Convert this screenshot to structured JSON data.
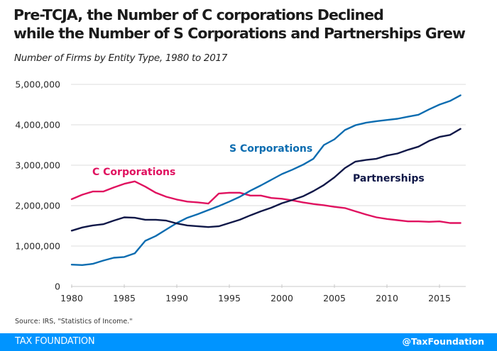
{
  "header": {
    "title_line1": "Pre-TCJA, the Number of C corporations Declined",
    "title_line2": "while the Number of S Corporations and Partnerships Grew",
    "subtitle": "Number of Firms by Entity Type, 1980 to 2017"
  },
  "source": "Source: IRS, \"Statistics of Income.\"",
  "footer": {
    "brand": "TAX FOUNDATION",
    "handle": "@TaxFoundation"
  },
  "chart_data": {
    "type": "line",
    "title": "Pre-TCJA, the Number of C corporations Declined while the Number of S Corporations and Partnerships Grew",
    "subtitle": "Number of Firms by Entity Type, 1980 to 2017",
    "xlabel": "",
    "ylabel": "",
    "xlim": [
      1980,
      2017
    ],
    "ylim": [
      0,
      5000000
    ],
    "grid": "horizontal",
    "x_ticks": [
      1980,
      1985,
      1990,
      1995,
      2000,
      2005,
      2010,
      2015
    ],
    "x_tick_labels": [
      "1980",
      "1985",
      "1990",
      "1995",
      "2000",
      "2005",
      "2010",
      "2015"
    ],
    "y_ticks": [
      0,
      1000000,
      2000000,
      3000000,
      4000000,
      5000000
    ],
    "y_tick_labels": [
      "0",
      "1,000,000",
      "2,000,000",
      "3,000,000",
      "4,000,000",
      "5,000,000"
    ],
    "x": [
      1980,
      1981,
      1982,
      1983,
      1984,
      1985,
      1986,
      1987,
      1988,
      1989,
      1990,
      1991,
      1992,
      1993,
      1994,
      1995,
      1996,
      1997,
      1998,
      1999,
      2000,
      2001,
      2002,
      2003,
      2004,
      2005,
      2006,
      2007,
      2008,
      2009,
      2010,
      2011,
      2012,
      2013,
      2014,
      2015,
      2016,
      2017
    ],
    "series": [
      {
        "name": "C Corporations",
        "color": "#e0115f",
        "label_position": "above-left",
        "values": [
          2160000,
          2270000,
          2350000,
          2350000,
          2450000,
          2540000,
          2600000,
          2470000,
          2320000,
          2220000,
          2150000,
          2100000,
          2080000,
          2050000,
          2300000,
          2320000,
          2320000,
          2250000,
          2250000,
          2190000,
          2170000,
          2130000,
          2080000,
          2040000,
          2010000,
          1970000,
          1940000,
          1860000,
          1780000,
          1710000,
          1670000,
          1640000,
          1610000,
          1610000,
          1600000,
          1610000,
          1570000,
          1570000
        ]
      },
      {
        "name": "S Corporations",
        "color": "#0b6cb0",
        "label_position": "middle",
        "values": [
          540000,
          530000,
          560000,
          640000,
          710000,
          730000,
          820000,
          1130000,
          1250000,
          1410000,
          1570000,
          1700000,
          1790000,
          1890000,
          1990000,
          2100000,
          2220000,
          2370000,
          2500000,
          2640000,
          2780000,
          2890000,
          3010000,
          3160000,
          3500000,
          3640000,
          3870000,
          3990000,
          4050000,
          4090000,
          4120000,
          4150000,
          4200000,
          4250000,
          4380000,
          4500000,
          4590000,
          4730000
        ]
      },
      {
        "name": "Partnerships",
        "color": "#101848",
        "label_position": "right",
        "values": [
          1380000,
          1460000,
          1510000,
          1540000,
          1630000,
          1710000,
          1700000,
          1650000,
          1650000,
          1630000,
          1560000,
          1510000,
          1490000,
          1470000,
          1490000,
          1570000,
          1650000,
          1760000,
          1860000,
          1950000,
          2060000,
          2140000,
          2230000,
          2360000,
          2510000,
          2700000,
          2930000,
          3090000,
          3130000,
          3160000,
          3240000,
          3290000,
          3380000,
          3460000,
          3600000,
          3700000,
          3750000,
          3900000
        ]
      }
    ]
  }
}
